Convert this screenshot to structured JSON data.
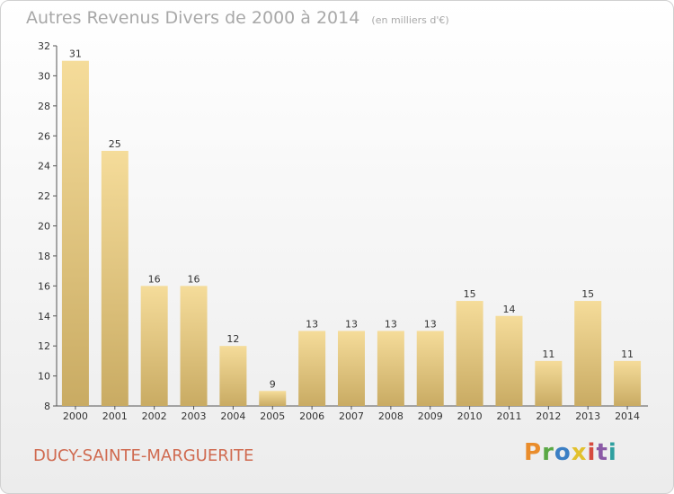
{
  "chart_data": {
    "type": "bar",
    "title": "Autres Revenus Divers de 2000 à 2014",
    "subtitle": "(en milliers d'€)",
    "categories": [
      "2000",
      "2001",
      "2002",
      "2003",
      "2004",
      "2005",
      "2006",
      "2007",
      "2008",
      "2009",
      "2010",
      "2011",
      "2012",
      "2013",
      "2014"
    ],
    "values": [
      31,
      25,
      16,
      16,
      12,
      9,
      13,
      13,
      13,
      13,
      15,
      14,
      11,
      15,
      11
    ],
    "ylim": [
      8,
      32
    ],
    "yticks": [
      8,
      10,
      12,
      14,
      16,
      18,
      20,
      22,
      24,
      26,
      28,
      30,
      32
    ],
    "grid": false,
    "bar_color": "#e6cc85"
  },
  "footer": {
    "commune": "DUCY-SAINTE-MARGUERITE",
    "brand": "Proxiti",
    "brand_colors": [
      "#e98c2b",
      "#5aa845",
      "#3b7fc4",
      "#e2c12d",
      "#d64b3f",
      "#8b5aa6",
      "#2fa0a0"
    ]
  }
}
